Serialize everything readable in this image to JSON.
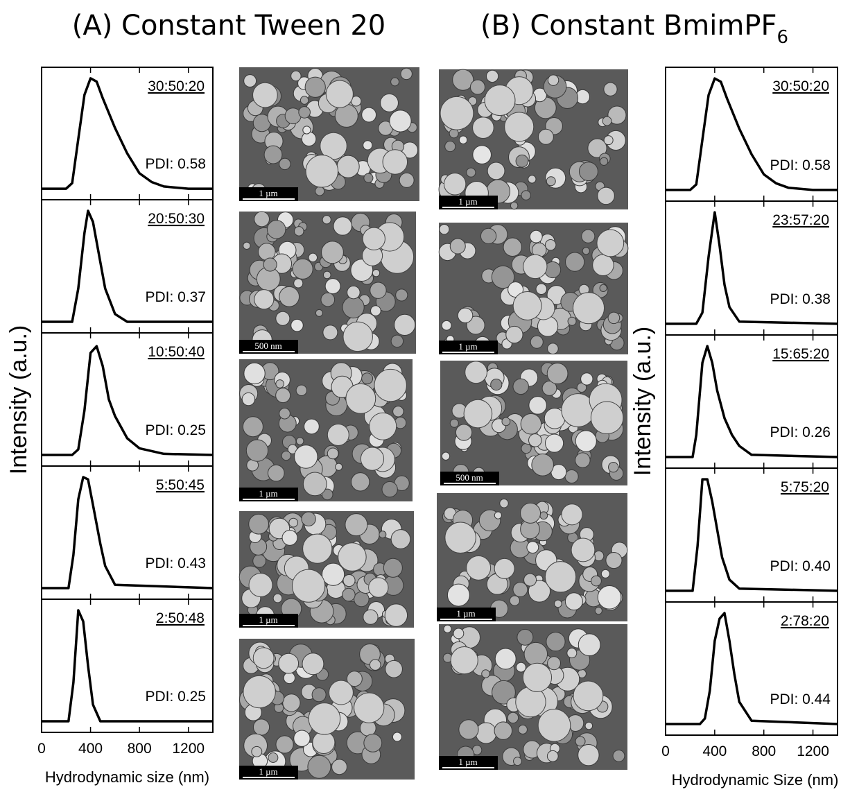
{
  "titles": {
    "a": "(A) Constant Tween 20",
    "b": "(B) Constant BmimPF",
    "b_sub": "6"
  },
  "columns": [
    {
      "ylabel": "Intensity (a.u.)",
      "xlabel": "Hydrodynamic size (nm)"
    },
    {
      "ylabel": "Intensity (a.u.)",
      "xlabel": "Hydrodynamic Size (nm)"
    }
  ],
  "sem_images": [
    [
      {
        "scale_bar": "1 µm"
      },
      {
        "scale_bar": "500 nm"
      },
      {
        "scale_bar": "1 µm"
      },
      {
        "scale_bar": "1 µm"
      },
      {
        "scale_bar": "1 µm"
      }
    ],
    [
      {
        "scale_bar": "1 µm"
      },
      {
        "scale_bar": "1 µm"
      },
      {
        "scale_bar": "500 nm"
      },
      {
        "scale_bar": "1 µm"
      },
      {
        "scale_bar": "1 µm"
      }
    ]
  ],
  "chart_data": [
    {
      "type": "line",
      "label": "30:50:20",
      "annotation": "PDI: 0.58",
      "color": "#000000",
      "x": [
        0,
        200,
        250,
        300,
        350,
        400,
        450,
        500,
        600,
        700,
        800,
        900,
        1000,
        1200,
        1400
      ],
      "values": [
        0,
        0,
        0.05,
        0.45,
        0.85,
        1.0,
        0.97,
        0.82,
        0.55,
        0.32,
        0.14,
        0.06,
        0.02,
        0,
        0
      ],
      "xlim": [
        0,
        1400
      ],
      "ylim": [
        -0.1,
        1.1
      ],
      "xticks": [
        0,
        400,
        800,
        1200
      ]
    },
    {
      "type": "line",
      "label": "20:50:30",
      "annotation": "PDI: 0.37",
      "color": "#000000",
      "x": [
        0,
        250,
        300,
        350,
        380,
        420,
        470,
        520,
        600,
        700,
        1400
      ],
      "values": [
        0,
        0,
        0.3,
        0.8,
        1.0,
        0.9,
        0.6,
        0.3,
        0.07,
        0,
        0
      ],
      "xlim": [
        0,
        1400
      ],
      "ylim": [
        -0.1,
        1.1
      ],
      "xticks": [
        0,
        400,
        800,
        1200
      ]
    },
    {
      "type": "line",
      "label": "10:50:40",
      "annotation": "PDI: 0.25",
      "color": "#000000",
      "x": [
        0,
        250,
        300,
        350,
        400,
        450,
        500,
        550,
        600,
        700,
        800,
        1000,
        1400
      ],
      "values": [
        0,
        0,
        0.05,
        0.4,
        0.92,
        0.98,
        0.8,
        0.5,
        0.35,
        0.15,
        0.06,
        0.01,
        0
      ],
      "xlim": [
        0,
        1400
      ],
      "ylim": [
        -0.1,
        1.1
      ],
      "xticks": [
        0,
        400,
        800,
        1200
      ]
    },
    {
      "type": "line",
      "label": "5:50:45",
      "annotation": "PDI: 0.43",
      "color": "#000000",
      "x": [
        0,
        220,
        260,
        300,
        340,
        380,
        420,
        480,
        520,
        600,
        1400
      ],
      "values": [
        0,
        0,
        0.3,
        0.8,
        1.0,
        0.98,
        0.75,
        0.4,
        0.2,
        0.03,
        0
      ],
      "xlim": [
        0,
        1400
      ],
      "ylim": [
        -0.1,
        1.1
      ],
      "xticks": [
        0,
        400,
        800,
        1200
      ]
    },
    {
      "type": "line",
      "label": "2:50:48",
      "annotation": "PDI: 0.25",
      "color": "#000000",
      "x": [
        0,
        220,
        260,
        300,
        340,
        380,
        420,
        480,
        1400
      ],
      "values": [
        0,
        0,
        0.35,
        1.0,
        0.9,
        0.5,
        0.15,
        0,
        0
      ],
      "xlim": [
        0,
        1400
      ],
      "ylim": [
        -0.1,
        1.1
      ],
      "xticks": [
        0,
        400,
        800,
        1200
      ]
    },
    {
      "type": "line",
      "label": "30:50:20",
      "annotation": "PDI: 0.58",
      "color": "#000000",
      "x": [
        0,
        200,
        250,
        300,
        350,
        400,
        450,
        500,
        600,
        700,
        800,
        900,
        1000,
        1200,
        1400
      ],
      "values": [
        0,
        0,
        0.05,
        0.45,
        0.85,
        1.0,
        0.97,
        0.82,
        0.55,
        0.32,
        0.14,
        0.06,
        0.02,
        0,
        0
      ],
      "xlim": [
        0,
        1400
      ],
      "ylim": [
        -0.1,
        1.1
      ],
      "xticks": [
        0,
        400,
        800,
        1200
      ]
    },
    {
      "type": "line",
      "label": "23:57:20",
      "annotation": "PDI: 0.38",
      "color": "#000000",
      "x": [
        0,
        250,
        300,
        350,
        400,
        440,
        480,
        520,
        600,
        1400
      ],
      "values": [
        0,
        0,
        0.1,
        0.6,
        1.0,
        0.7,
        0.35,
        0.15,
        0.02,
        0
      ],
      "xlim": [
        0,
        1400
      ],
      "ylim": [
        -0.1,
        1.1
      ],
      "xticks": [
        0,
        400,
        800,
        1200
      ]
    },
    {
      "type": "line",
      "label": "15:65:20",
      "annotation": "PDI: 0.26",
      "color": "#000000",
      "x": [
        0,
        220,
        250,
        300,
        340,
        380,
        420,
        480,
        540,
        600,
        700,
        1400
      ],
      "values": [
        0,
        0,
        0.2,
        0.85,
        1.0,
        0.85,
        0.6,
        0.35,
        0.2,
        0.1,
        0.02,
        0
      ],
      "xlim": [
        0,
        1400
      ],
      "ylim": [
        -0.1,
        1.1
      ],
      "xticks": [
        0,
        400,
        800,
        1200
      ]
    },
    {
      "type": "line",
      "label": "5:75:20",
      "annotation": "PDI: 0.40",
      "color": "#000000",
      "x": [
        0,
        220,
        260,
        300,
        340,
        380,
        420,
        460,
        520,
        600,
        1400
      ],
      "values": [
        0,
        0,
        0.4,
        1.0,
        1.0,
        0.8,
        0.55,
        0.3,
        0.1,
        0.02,
        0
      ],
      "xlim": [
        0,
        1400
      ],
      "ylim": [
        -0.1,
        1.1
      ],
      "xticks": [
        0,
        400,
        800,
        1200
      ]
    },
    {
      "type": "line",
      "label": "2:78:20",
      "annotation": "PDI: 0.44",
      "color": "#000000",
      "x": [
        0,
        280,
        320,
        360,
        400,
        440,
        480,
        520,
        560,
        600,
        700,
        1400
      ],
      "values": [
        0,
        0,
        0.05,
        0.3,
        0.75,
        0.95,
        1.0,
        0.75,
        0.45,
        0.2,
        0.03,
        0
      ],
      "xlim": [
        0,
        1400
      ],
      "ylim": [
        -0.1,
        1.1
      ],
      "xticks": [
        0,
        400,
        800,
        1200
      ]
    }
  ]
}
